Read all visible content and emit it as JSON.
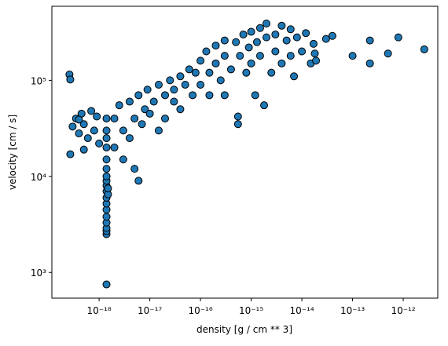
{
  "chart_data": {
    "type": "scatter",
    "xlabel": "density [g / cm ** 3]",
    "ylabel": "velocity [cm / s]",
    "xscale": "log",
    "yscale": "log",
    "xlim": [
      1.17e-19,
      4.8e-12
    ],
    "ylim": [
      540,
      590000
    ],
    "xticks": [
      {
        "value": 1e-18,
        "label": "10⁻¹⁸"
      },
      {
        "value": 1e-17,
        "label": "10⁻¹⁷"
      },
      {
        "value": 1e-16,
        "label": "10⁻¹⁶"
      },
      {
        "value": 1e-15,
        "label": "10⁻¹⁵"
      },
      {
        "value": 1e-14,
        "label": "10⁻¹⁴"
      },
      {
        "value": 1e-13,
        "label": "10⁻¹³"
      },
      {
        "value": 1e-12,
        "label": "10⁻¹²"
      }
    ],
    "yticks": [
      {
        "value": 1000,
        "label": "10³"
      },
      {
        "value": 10000,
        "label": "10⁴"
      },
      {
        "value": 100000,
        "label": "10⁵"
      }
    ],
    "series": [
      {
        "color": "#1f77b4",
        "x": [
          2.6e-19,
          2.7e-19,
          2.7e-19,
          1.4e-18,
          1.4e-18,
          1.4e-18,
          1.4e-18,
          1.4e-18,
          1.4e-18,
          1.4e-18,
          1.4e-18,
          1.4e-18,
          1.4e-18,
          1.4e-18,
          1.4e-18,
          1.4e-18,
          1.4e-18,
          1.4e-18,
          1.4e-18,
          1.4e-18,
          1.4e-18,
          1.4e-18,
          1.5e-18,
          1.5e-18,
          3e-19,
          3.5e-19,
          4e-19,
          4.5e-19,
          5e-19,
          6e-19,
          7e-19,
          8e-19,
          9e-19,
          1e-18,
          5e-19,
          4e-19,
          2e-18,
          2e-18,
          2.5e-18,
          3e-18,
          3e-18,
          4e-18,
          4e-18,
          5e-18,
          5e-18,
          6e-18,
          6e-18,
          7e-18,
          8e-18,
          9e-18,
          1e-17,
          1.2e-17,
          1.5e-17,
          1.5e-17,
          2e-17,
          2e-17,
          2.5e-17,
          3e-17,
          3e-17,
          4e-17,
          4e-17,
          5e-17,
          6e-17,
          7e-17,
          8e-17,
          1e-16,
          1e-16,
          1.3e-16,
          1.5e-16,
          1.5e-16,
          2e-16,
          2e-16,
          2.5e-16,
          3e-16,
          3e-16,
          3e-16,
          4e-16,
          5e-16,
          5.5e-16,
          5.5e-16,
          6e-16,
          7e-16,
          8e-16,
          9e-16,
          1e-15,
          1e-15,
          1.2e-15,
          1.3e-15,
          1.5e-15,
          1.5e-15,
          1.8e-15,
          2e-15,
          2e-15,
          2.5e-15,
          3e-15,
          3e-15,
          4e-15,
          4e-15,
          5e-15,
          6e-15,
          6e-15,
          7e-15,
          8e-15,
          1e-14,
          1.2e-14,
          1.5e-14,
          4e-14,
          3e-14,
          1e-13,
          2.2e-13,
          2.2e-13,
          5e-13,
          8e-13,
          2.6e-12,
          1.7e-14,
          1.8e-14,
          1.9e-14
        ],
        "values": [
          115000,
          102000,
          17000,
          750,
          2500,
          2700,
          2900,
          3300,
          3800,
          4500,
          5200,
          6000,
          7000,
          8000,
          9000,
          10000,
          12000,
          15000,
          20000,
          25000,
          30000,
          40000,
          6500,
          7500,
          33000,
          40000,
          28000,
          45000,
          35000,
          25000,
          48000,
          30000,
          42000,
          22000,
          19000,
          39000,
          40000,
          20000,
          55000,
          30000,
          15000,
          60000,
          25000,
          40000,
          12000,
          70000,
          9000,
          35000,
          50000,
          80000,
          45000,
          60000,
          30000,
          90000,
          70000,
          40000,
          100000,
          60000,
          80000,
          110000,
          50000,
          90000,
          130000,
          70000,
          120000,
          160000,
          90000,
          200000,
          120000,
          70000,
          230000,
          150000,
          100000,
          260000,
          180000,
          70000,
          130000,
          250000,
          35000,
          42000,
          180000,
          300000,
          120000,
          220000,
          320000,
          150000,
          70000,
          250000,
          350000,
          180000,
          55000,
          390000,
          280000,
          120000,
          300000,
          200000,
          370000,
          150000,
          260000,
          340000,
          180000,
          110000,
          280000,
          200000,
          310000,
          150000,
          290000,
          270000,
          180000,
          260000,
          150000,
          190000,
          280000,
          210000,
          240000,
          190000,
          160000
        ]
      }
    ]
  }
}
